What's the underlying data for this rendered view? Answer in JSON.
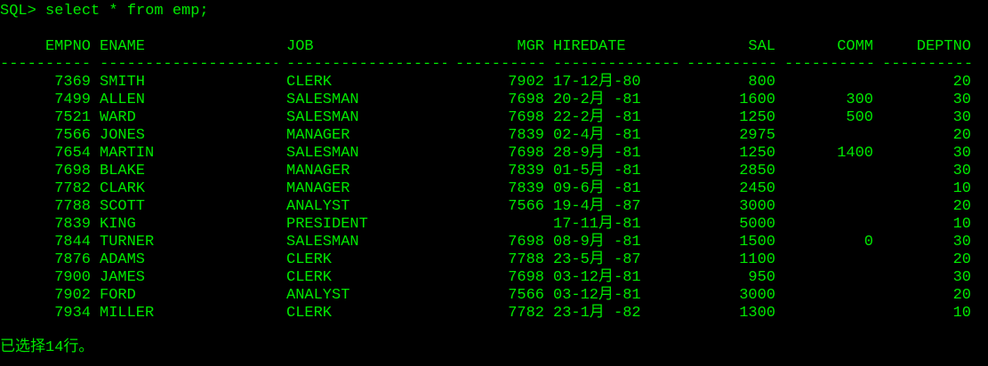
{
  "prompt": {
    "text": "SQL> select * from emp;"
  },
  "table": {
    "headers": {
      "empno": "EMPNO",
      "ename": "ENAME",
      "job": "JOB",
      "mgr": "MGR",
      "hiredate": "HIREDATE",
      "sal": "SAL",
      "comm": "COMM",
      "deptno": "DEPTNO"
    },
    "separator_char": "-",
    "rows": [
      {
        "empno": "7369",
        "ename": "SMITH",
        "job": "CLERK",
        "mgr": "7902",
        "hiredate": "17-12月-80",
        "sal": "800",
        "comm": "",
        "deptno": "20"
      },
      {
        "empno": "7499",
        "ename": "ALLEN",
        "job": "SALESMAN",
        "mgr": "7698",
        "hiredate": "20-2月 -81",
        "sal": "1600",
        "comm": "300",
        "deptno": "30"
      },
      {
        "empno": "7521",
        "ename": "WARD",
        "job": "SALESMAN",
        "mgr": "7698",
        "hiredate": "22-2月 -81",
        "sal": "1250",
        "comm": "500",
        "deptno": "30"
      },
      {
        "empno": "7566",
        "ename": "JONES",
        "job": "MANAGER",
        "mgr": "7839",
        "hiredate": "02-4月 -81",
        "sal": "2975",
        "comm": "",
        "deptno": "20"
      },
      {
        "empno": "7654",
        "ename": "MARTIN",
        "job": "SALESMAN",
        "mgr": "7698",
        "hiredate": "28-9月 -81",
        "sal": "1250",
        "comm": "1400",
        "deptno": "30"
      },
      {
        "empno": "7698",
        "ename": "BLAKE",
        "job": "MANAGER",
        "mgr": "7839",
        "hiredate": "01-5月 -81",
        "sal": "2850",
        "comm": "",
        "deptno": "30"
      },
      {
        "empno": "7782",
        "ename": "CLARK",
        "job": "MANAGER",
        "mgr": "7839",
        "hiredate": "09-6月 -81",
        "sal": "2450",
        "comm": "",
        "deptno": "10"
      },
      {
        "empno": "7788",
        "ename": "SCOTT",
        "job": "ANALYST",
        "mgr": "7566",
        "hiredate": "19-4月 -87",
        "sal": "3000",
        "comm": "",
        "deptno": "20"
      },
      {
        "empno": "7839",
        "ename": "KING",
        "job": "PRESIDENT",
        "mgr": "",
        "hiredate": "17-11月-81",
        "sal": "5000",
        "comm": "",
        "deptno": "10"
      },
      {
        "empno": "7844",
        "ename": "TURNER",
        "job": "SALESMAN",
        "mgr": "7698",
        "hiredate": "08-9月 -81",
        "sal": "1500",
        "comm": "0",
        "deptno": "30"
      },
      {
        "empno": "7876",
        "ename": "ADAMS",
        "job": "CLERK",
        "mgr": "7788",
        "hiredate": "23-5月 -87",
        "sal": "1100",
        "comm": "",
        "deptno": "20"
      },
      {
        "empno": "7900",
        "ename": "JAMES",
        "job": "CLERK",
        "mgr": "7698",
        "hiredate": "03-12月-81",
        "sal": "950",
        "comm": "",
        "deptno": "30"
      },
      {
        "empno": "7902",
        "ename": "FORD",
        "job": "ANALYST",
        "mgr": "7566",
        "hiredate": "03-12月-81",
        "sal": "3000",
        "comm": "",
        "deptno": "20"
      },
      {
        "empno": "7934",
        "ename": "MILLER",
        "job": "CLERK",
        "mgr": "7782",
        "hiredate": "23-1月 -82",
        "sal": "1300",
        "comm": "",
        "deptno": "10"
      }
    ]
  },
  "footer": {
    "text": "已选择14行。"
  },
  "colors": {
    "background": "#000000",
    "text": "#00e800"
  }
}
